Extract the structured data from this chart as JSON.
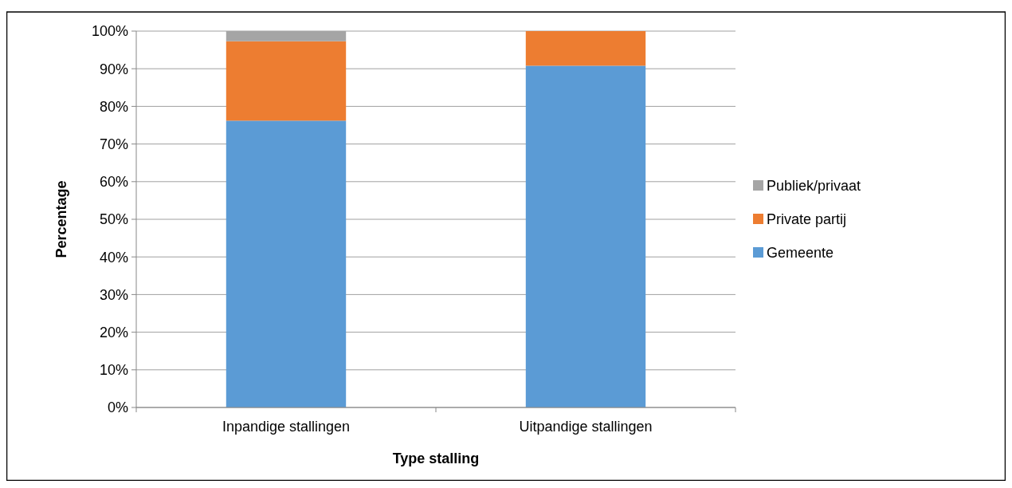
{
  "chart_data": {
    "type": "bar",
    "stacked": true,
    "xlabel": "Type stalling",
    "ylabel": "Percentage",
    "categories": [
      "Inpandige stallingen",
      "Uitpandige stallingen"
    ],
    "series": [
      {
        "name": "Gemeente",
        "color": "#5b9bd5",
        "values": [
          76.2,
          90.8
        ]
      },
      {
        "name": "Private partij",
        "color": "#ed7d31",
        "values": [
          21.1,
          9.2
        ]
      },
      {
        "name": "Publiek/privaat",
        "color": "#a5a5a5",
        "values": [
          2.7,
          0
        ]
      }
    ],
    "ylim": [
      0,
      100
    ],
    "yticks": [
      {
        "value": 0,
        "label": "0%"
      },
      {
        "value": 10,
        "label": "10%"
      },
      {
        "value": 20,
        "label": "20%"
      },
      {
        "value": 30,
        "label": "30%"
      },
      {
        "value": 40,
        "label": "40%"
      },
      {
        "value": 50,
        "label": "50%"
      },
      {
        "value": 60,
        "label": "60%"
      },
      {
        "value": 70,
        "label": "70%"
      },
      {
        "value": 80,
        "label": "80%"
      },
      {
        "value": 90,
        "label": "90%"
      },
      {
        "value": 100,
        "label": "100%"
      }
    ],
    "grid": "y",
    "legend": "right"
  }
}
